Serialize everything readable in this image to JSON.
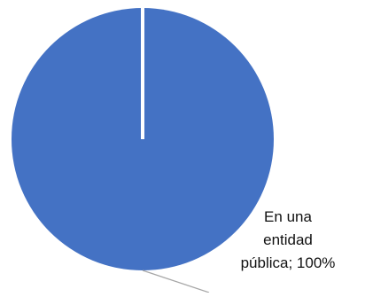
{
  "chart_data": {
    "type": "pie",
    "slices": [
      {
        "label": "En una entidad pública",
        "value": 100,
        "display": "100%",
        "color": "#4472C4"
      }
    ],
    "data_label": {
      "lines": [
        "En una",
        "entidad",
        "pública; 100%"
      ]
    },
    "divider_color": "#ffffff",
    "leader_line_color": "#a6a6a6"
  }
}
